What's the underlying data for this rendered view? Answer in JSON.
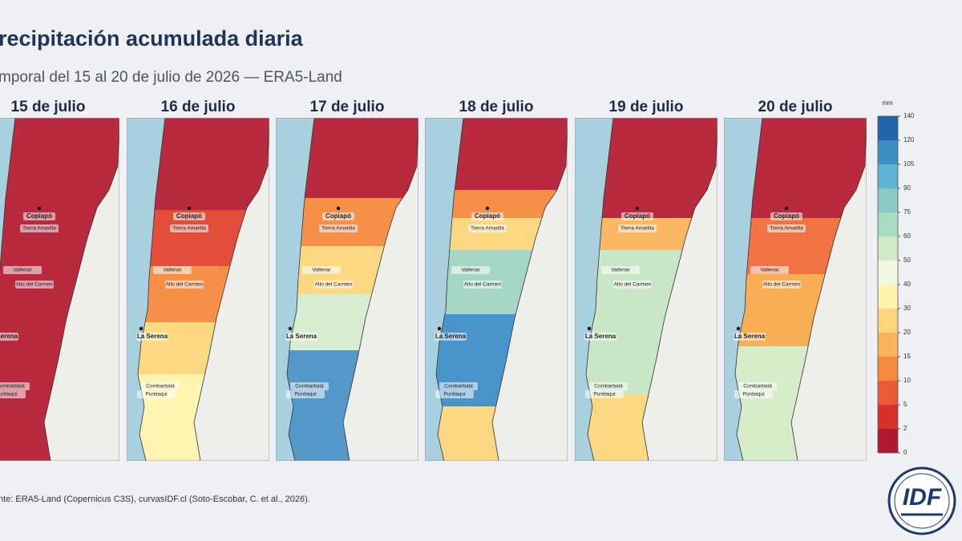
{
  "header": {
    "title": "recipitación acumulada diaria",
    "subtitle": "mporal del 15 al 20 de julio de 2026 — ERA5-Land"
  },
  "panels": [
    {
      "title": "15 de julio"
    },
    {
      "title": "16 de julio"
    },
    {
      "title": "17 de julio"
    },
    {
      "title": "18 de julio"
    },
    {
      "title": "19 de julio"
    },
    {
      "title": "20 de julio"
    }
  ],
  "cities": [
    {
      "name": "Copiapó"
    },
    {
      "name": "Tierra Amarilla"
    },
    {
      "name": "Vallenar"
    },
    {
      "name": "Alto del Carmen"
    },
    {
      "name": "La Serena"
    },
    {
      "name": "Combarbalá"
    },
    {
      "name": "Punitaqui"
    }
  ],
  "colorbar": {
    "label": "mm",
    "ticks": [
      0,
      2,
      5,
      10,
      15,
      20,
      30,
      40,
      50,
      60,
      75,
      90,
      105,
      120,
      140
    ],
    "colors": [
      "#b0182f",
      "#d7302a",
      "#ea5a34",
      "#f5893f",
      "#fbb35a",
      "#fdd67c",
      "#fff3ad",
      "#f2f8e6",
      "#cfeac6",
      "#a9dbc0",
      "#86cbc5",
      "#5fb3d3",
      "#3f8fc4",
      "#1f65a8"
    ]
  },
  "footer": {
    "source": "nte: ERA5-Land (Copernicus C3S), curvasIDF.cl (Soto-Escobar, C. et al., 2026)."
  },
  "logo": {
    "text": "IDF"
  }
}
